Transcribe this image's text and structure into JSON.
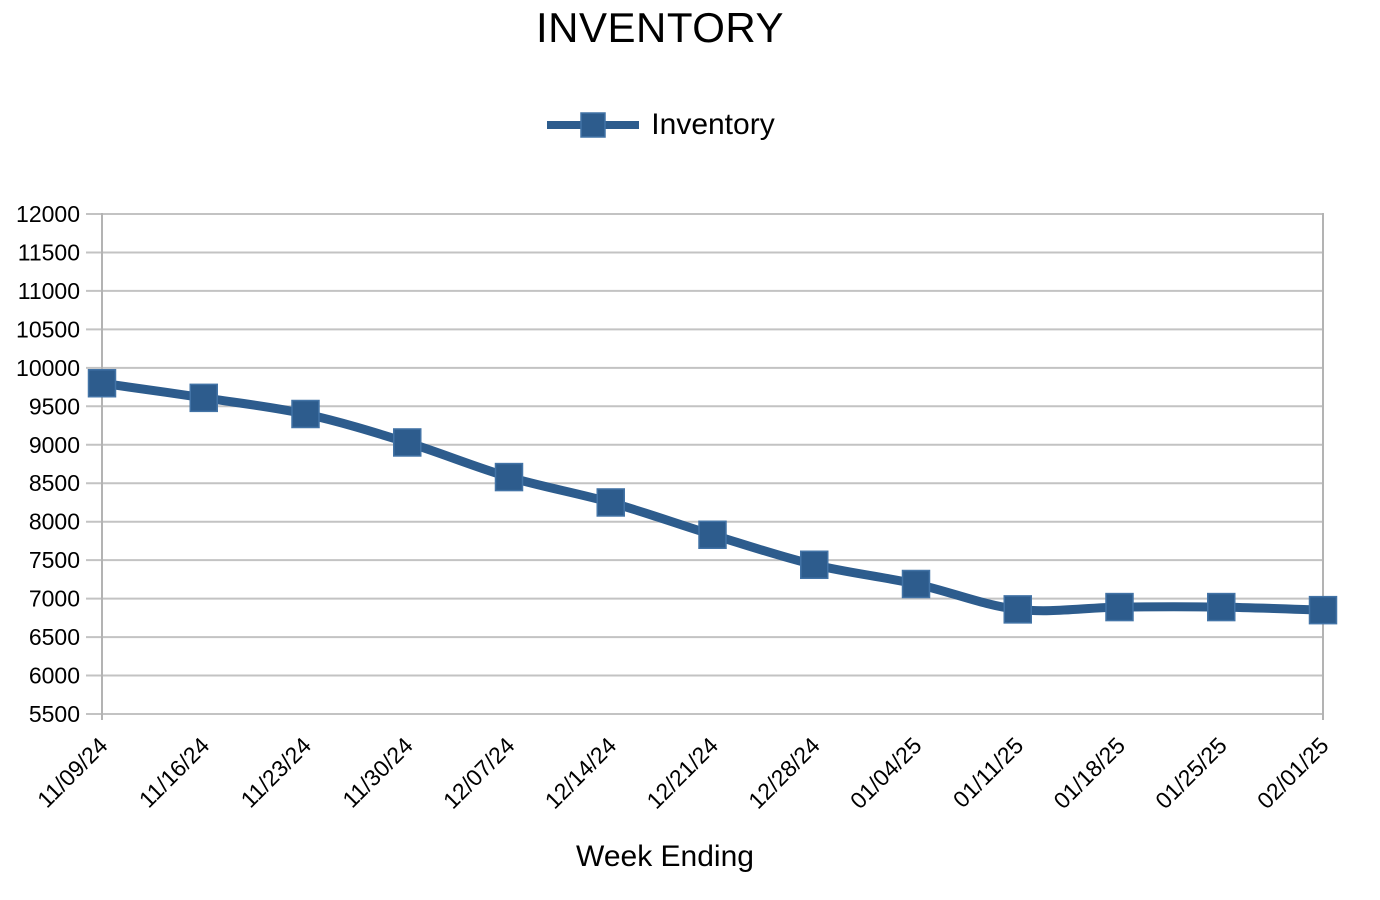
{
  "chart_data": {
    "type": "line",
    "title": "INVENTORY",
    "xlabel": "Week Ending",
    "ylabel": "",
    "categories": [
      "11/09/24",
      "11/16/24",
      "11/23/24",
      "11/30/24",
      "12/07/24",
      "12/14/24",
      "12/21/24",
      "12/28/24",
      "01/04/25",
      "01/11/25",
      "01/18/25",
      "01/25/25",
      "02/01/25"
    ],
    "series": [
      {
        "name": "Inventory",
        "values": [
          9800,
          9610,
          9400,
          9030,
          8580,
          8250,
          7830,
          7440,
          7190,
          6860,
          6890,
          6890,
          6850
        ]
      }
    ],
    "ylim": [
      5500,
      12000
    ],
    "ytick_step": 500,
    "grid": "horizontal",
    "legend_position": "top-center",
    "line_smoothing": true,
    "marker": "square",
    "colors": {
      "series": "#2D5C8D",
      "marker_edge": "#4273A6",
      "gridline": "#C3C3C3",
      "axis": "#B3B3B3",
      "text": "#000000",
      "background": "#FFFFFF"
    }
  }
}
